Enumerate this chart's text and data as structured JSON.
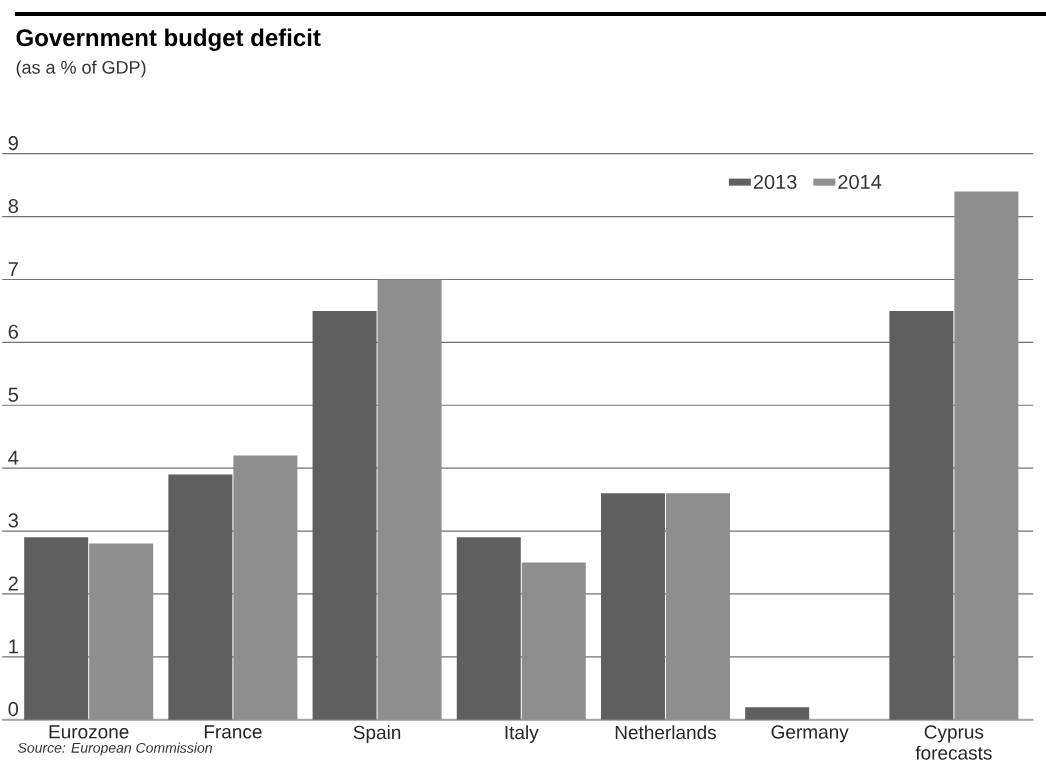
{
  "chart_data": {
    "type": "bar",
    "title": "Government budget deficit",
    "subtitle": "(as a % of GDP)",
    "categories": [
      "Eurozone",
      "France",
      "Spain",
      "Italy",
      "Netherlands",
      "Germany",
      "Cyprus forecasts"
    ],
    "series": [
      {
        "name": "2013",
        "color": "#5f5f5f",
        "values": [
          2.9,
          3.9,
          6.5,
          2.9,
          3.6,
          0.2,
          6.5
        ]
      },
      {
        "name": "2014",
        "color": "#8e8e8e",
        "values": [
          2.8,
          4.2,
          7.0,
          2.5,
          3.6,
          null,
          8.4
        ]
      }
    ],
    "ylim": [
      0,
      9
    ],
    "yticks": [
      0,
      1,
      2,
      3,
      4,
      5,
      6,
      7,
      8,
      9
    ],
    "grid": "y",
    "legend": "top right",
    "annotations": [
      "Source: European Commission"
    ]
  }
}
